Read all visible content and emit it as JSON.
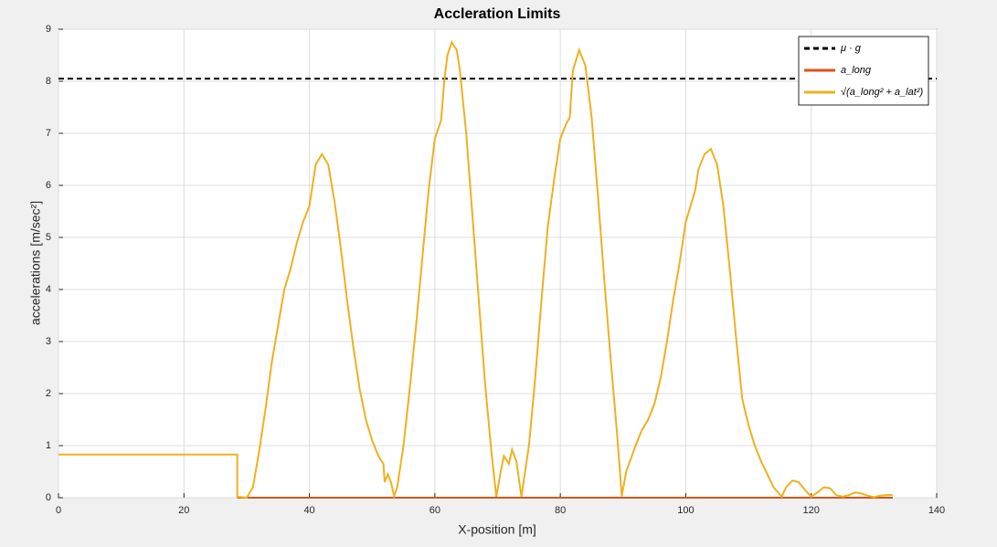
{
  "chart_data": {
    "type": "line",
    "title": "Accleration Limits",
    "xlabel": "X-position [m]",
    "ylabel": "accelerations [m/sec²]",
    "xlim": [
      0,
      140
    ],
    "xticks": [
      0,
      20,
      40,
      60,
      80,
      100,
      120,
      140
    ],
    "ylim": [
      0,
      9
    ],
    "yticks": [
      0,
      1,
      2,
      3,
      4,
      5,
      6,
      7,
      8,
      9
    ],
    "grid": true,
    "legend": "upper right",
    "series": [
      {
        "name": "μ · g",
        "color": "#000000",
        "dashed": true,
        "x": [
          0,
          140
        ],
        "values": [
          8.05,
          8.05
        ]
      },
      {
        "name": "a_long",
        "color": "#d95319",
        "x": [
          28.5,
          133
        ],
        "values": [
          0,
          0
        ]
      },
      {
        "name": "√(a_long² + a_lat²)",
        "color": "#edb120",
        "x": [
          0,
          28.5,
          28.5,
          30,
          31,
          32,
          33,
          34,
          35,
          36,
          37,
          38,
          39,
          40,
          40.5,
          41,
          42,
          43,
          44,
          45,
          46,
          47,
          48,
          49,
          50,
          51,
          51.8,
          52,
          52.5,
          53,
          53.5,
          54,
          55,
          56,
          57,
          58,
          59,
          60,
          61,
          61.5,
          62,
          62.7,
          63.5,
          64,
          65,
          66,
          67,
          68,
          69,
          69.8,
          70.5,
          71,
          71.8,
          72.3,
          73,
          73.8,
          75,
          76,
          77,
          78,
          79,
          80,
          81,
          81.5,
          82,
          83,
          84,
          85,
          86,
          87,
          88,
          89,
          89.8,
          90.5,
          92,
          93,
          94,
          95,
          96,
          97,
          98,
          99,
          100,
          101,
          101.5,
          102,
          103,
          104,
          105,
          106,
          107,
          108,
          109,
          110,
          111,
          112,
          113,
          114,
          115.3,
          116,
          117,
          118,
          119,
          120,
          121,
          122,
          123,
          124,
          125,
          126,
          127,
          128,
          129,
          130,
          131,
          132,
          133
        ],
        "values": [
          0.83,
          0.83,
          0.02,
          0,
          0.2,
          0.9,
          1.7,
          2.6,
          3.3,
          4.0,
          4.4,
          4.9,
          5.3,
          5.6,
          6.0,
          6.4,
          6.6,
          6.4,
          5.7,
          4.8,
          3.8,
          2.9,
          2.1,
          1.5,
          1.1,
          0.8,
          0.65,
          0.3,
          0.45,
          0.3,
          0.03,
          0.2,
          1.0,
          2.1,
          3.3,
          4.6,
          5.9,
          6.9,
          7.25,
          8.0,
          8.5,
          8.75,
          8.6,
          8.2,
          7.0,
          5.4,
          3.8,
          2.2,
          0.9,
          0.02,
          0.5,
          0.8,
          0.65,
          0.92,
          0.7,
          0.02,
          1.0,
          2.3,
          3.8,
          5.2,
          6.1,
          6.9,
          7.2,
          7.3,
          8.2,
          8.6,
          8.3,
          7.3,
          5.8,
          4.2,
          2.7,
          1.3,
          0.03,
          0.5,
          1.0,
          1.3,
          1.5,
          1.8,
          2.3,
          3.0,
          3.8,
          4.5,
          5.3,
          5.7,
          5.9,
          6.3,
          6.6,
          6.7,
          6.4,
          5.6,
          4.4,
          3.1,
          1.9,
          1.4,
          1.0,
          0.7,
          0.45,
          0.2,
          0.02,
          0.2,
          0.33,
          0.3,
          0.15,
          0.02,
          0.1,
          0.2,
          0.18,
          0.05,
          0.02,
          0.05,
          0.1,
          0.08,
          0.04,
          0.01,
          0.04,
          0.05,
          0.05
        ]
      }
    ]
  }
}
